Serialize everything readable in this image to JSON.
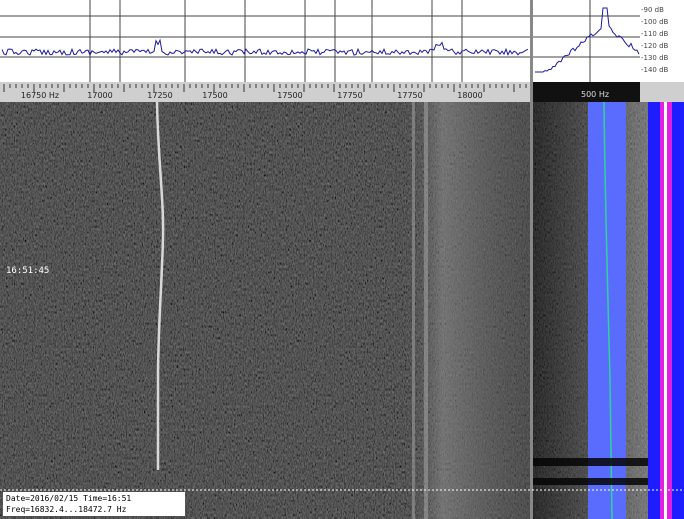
{
  "spectrum": {
    "freq_labels": [
      "16750 Hz",
      "17000",
      "17250",
      "17500",
      "17500",
      "17750",
      "17750",
      "18000"
    ],
    "zoom_label": "500 Hz",
    "db_labels": [
      "-90 dB",
      "-100 dB",
      "-110 dB",
      "-120 dB",
      "-130 dB",
      "-140 dB"
    ]
  },
  "waterfall": {
    "time_marker": "16:51:45",
    "info": [
      "Date=2016/02/15 Time=16:51",
      "Freq=16832.4...18472.7 Hz"
    ]
  }
}
